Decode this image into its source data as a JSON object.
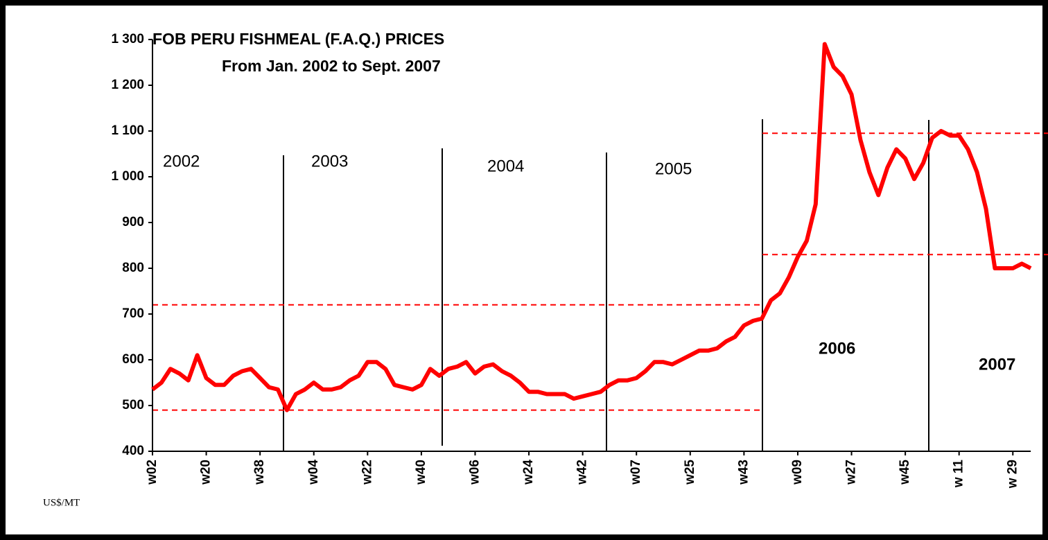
{
  "chart_data": {
    "type": "line",
    "title": "FOB PERU FISHMEAL (F.A.Q.) PRICES",
    "subtitle": "From Jan. 2002 to Sept. 2007",
    "y_label": "US$/MT",
    "color": "#ff0000",
    "annotations": [
      "2002",
      "2003",
      "2004",
      "2005",
      "2006",
      "2007"
    ],
    "reference_lines": [
      {
        "value": 720
      },
      {
        "value": 490
      },
      {
        "value": 1095
      },
      {
        "value": 830
      }
    ],
    "ylim": [
      400,
      1300
    ],
    "yticks": [
      400,
      500,
      600,
      700,
      800,
      900,
      {
        "value": 1000,
        "label": "1 000"
      },
      {
        "value": 1100,
        "label": "1 100"
      },
      {
        "value": 1200,
        "label": "1 200"
      },
      {
        "value": 1300,
        "label": "1 300"
      }
    ],
    "categories": [
      "w02",
      null,
      null,
      null,
      null,
      null,
      "w20",
      null,
      null,
      null,
      null,
      null,
      "w38",
      null,
      null,
      null,
      null,
      null,
      "w04",
      null,
      null,
      null,
      null,
      null,
      "w22",
      null,
      null,
      null,
      null,
      null,
      "w40",
      null,
      null,
      null,
      null,
      null,
      "w06",
      null,
      null,
      null,
      null,
      null,
      "w24",
      null,
      null,
      null,
      null,
      null,
      "w42",
      null,
      null,
      null,
      null,
      null,
      "w07",
      null,
      null,
      null,
      null,
      null,
      "w25",
      null,
      null,
      null,
      null,
      null,
      "w43",
      null,
      null,
      null,
      null,
      null,
      "w09",
      null,
      null,
      null,
      null,
      null,
      "w27",
      null,
      null,
      null,
      null,
      null,
      "w45",
      null,
      null,
      null,
      null,
      null,
      "w 11",
      null,
      null,
      null,
      null,
      null,
      "w 29",
      null,
      null
    ],
    "values": [
      535,
      550,
      580,
      570,
      555,
      610,
      560,
      545,
      545,
      565,
      575,
      580,
      560,
      540,
      535,
      490,
      525,
      535,
      550,
      535,
      535,
      540,
      555,
      565,
      595,
      595,
      580,
      545,
      540,
      535,
      545,
      580,
      565,
      580,
      585,
      595,
      570,
      585,
      590,
      575,
      565,
      550,
      530,
      530,
      525,
      525,
      525,
      515,
      520,
      525,
      530,
      545,
      555,
      555,
      560,
      575,
      595,
      595,
      590,
      600,
      610,
      620,
      620,
      625,
      640,
      650,
      675,
      685,
      690,
      730,
      745,
      780,
      825,
      860,
      940,
      1290,
      1240,
      1220,
      1180,
      1080,
      1010,
      960,
      1020,
      1060,
      1040,
      995,
      1030,
      1085,
      1100,
      1090,
      1090,
      1060,
      1010,
      930,
      800,
      800,
      800,
      810,
      800
    ]
  }
}
